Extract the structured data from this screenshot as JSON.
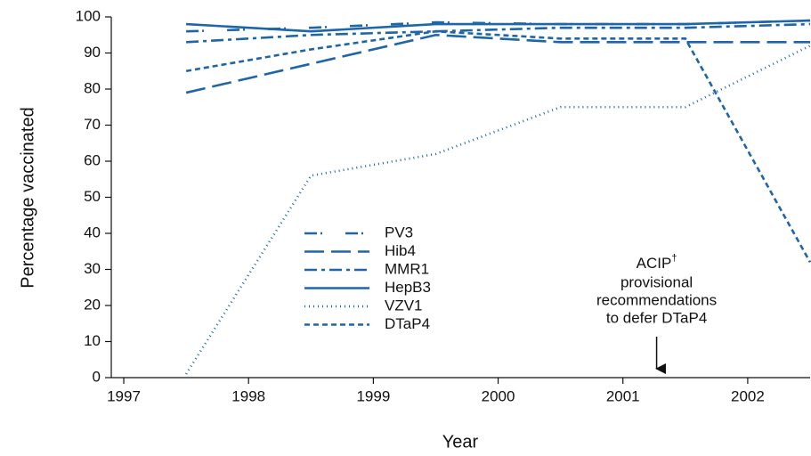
{
  "chart_data": {
    "type": "line",
    "x_label": "Year",
    "y_label": "Percentage vaccinated",
    "x": [
      1997.5,
      1998.5,
      1999.5,
      2000.5,
      2001.5,
      2002.5
    ],
    "series": [
      {
        "name": "PV3",
        "color": "#1f66a8",
        "values": [
          96,
          97,
          98.5,
          98,
          98,
          99
        ]
      },
      {
        "name": "Hib4",
        "color": "#1f66a8",
        "values": [
          79,
          87,
          95,
          93,
          93,
          93
        ]
      },
      {
        "name": "MMR1",
        "color": "#1f66a8",
        "values": [
          93,
          95,
          96,
          97,
          97,
          98
        ]
      },
      {
        "name": "HepB3",
        "color": "#1f66a8",
        "values": [
          98,
          96,
          98,
          98,
          98,
          99
        ]
      },
      {
        "name": "VZV1",
        "color": "#1f66a8",
        "values": [
          1,
          56,
          62,
          75,
          75,
          92
        ]
      },
      {
        "name": "DTaP4",
        "color": "#1f66a8",
        "values": [
          85,
          91,
          96,
          94,
          94,
          32
        ]
      }
    ],
    "xlim": [
      1996.9,
      2002.5
    ],
    "xticks": [
      1997,
      1998,
      1999,
      2000,
      2001,
      2002
    ],
    "ylim": [
      0,
      100
    ],
    "yticks": [
      0,
      10,
      20,
      30,
      40,
      50,
      60,
      70,
      80,
      90,
      100
    ],
    "grid": false,
    "annotation": {
      "label": "ACIP",
      "sup": "†",
      "lines": [
        "provisional",
        "recommendations",
        "to defer DTaP4"
      ],
      "x": 2001.27
    }
  }
}
